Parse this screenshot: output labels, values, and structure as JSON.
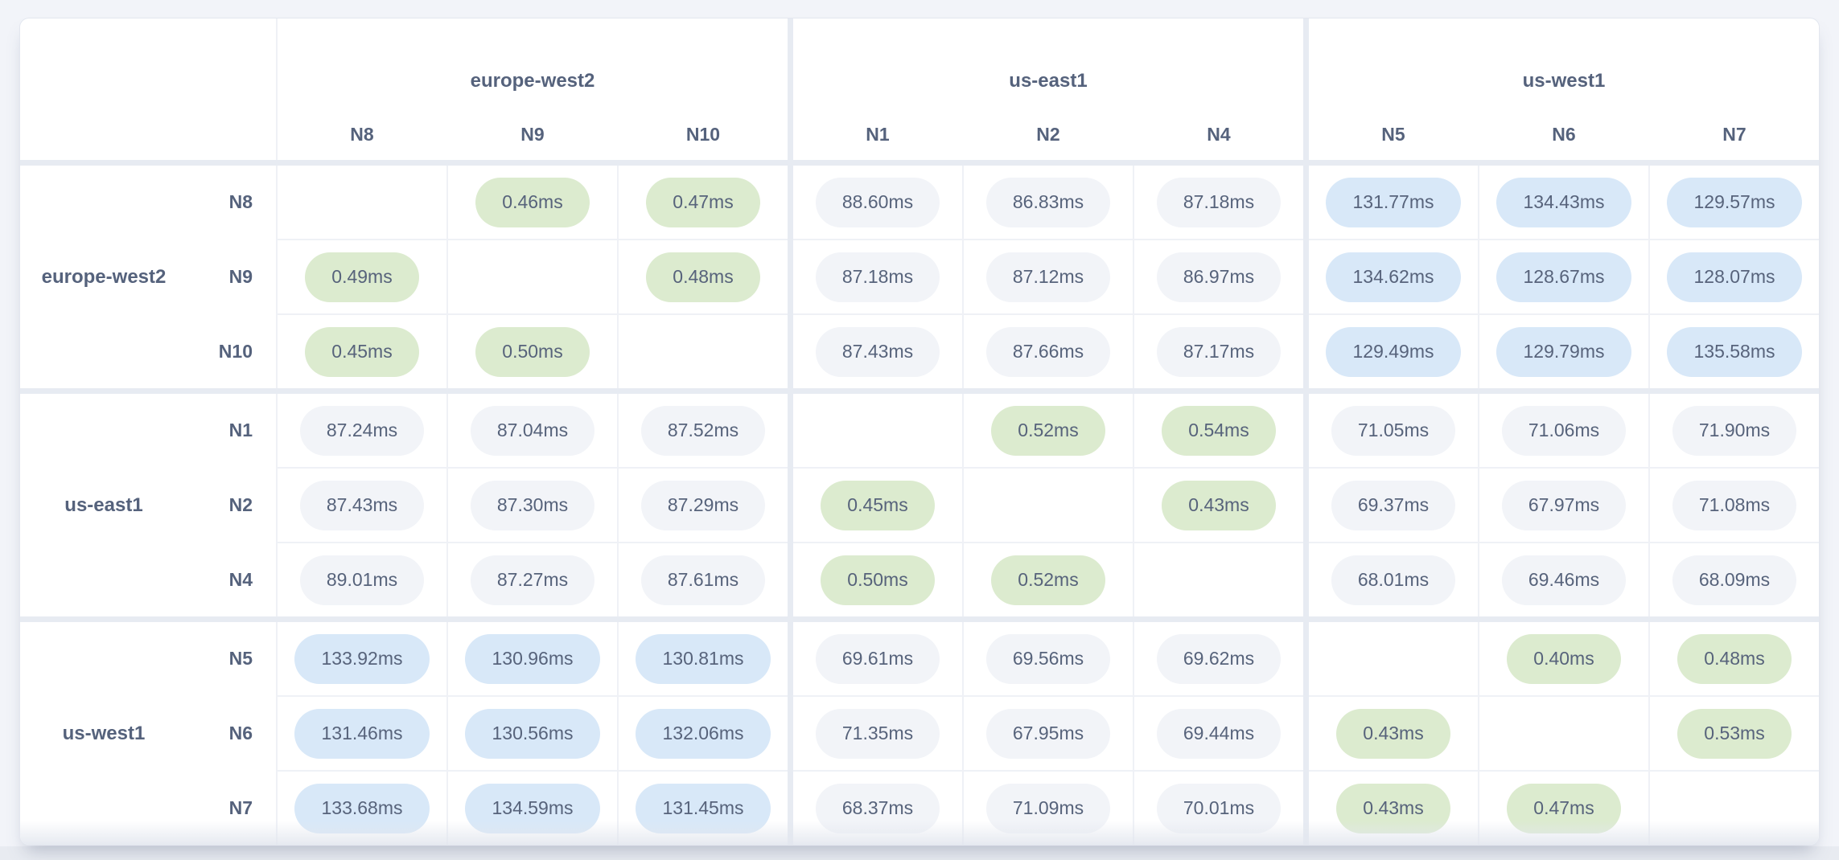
{
  "page": {
    "background": "#f2f4f9",
    "bottom_strip_color": "#e8ebf1"
  },
  "chart_data": {
    "type": "heatmap",
    "title": "",
    "unit": "ms",
    "value_suffix": "ms",
    "legend": "none",
    "cell_colors": {
      "intra_region_low": "#dcebcf",
      "mid_latency": "#f2f4f8",
      "high_latency": "#d8e8f8"
    },
    "thresholds_ms": {
      "low_below": 1,
      "high_at_or_above": 110
    },
    "column_groups": [
      {
        "region": "europe-west2",
        "nodes": [
          "N8",
          "N9",
          "N10"
        ]
      },
      {
        "region": "us-east1",
        "nodes": [
          "N1",
          "N2",
          "N4"
        ]
      },
      {
        "region": "us-west1",
        "nodes": [
          "N5",
          "N6",
          "N7"
        ]
      }
    ],
    "row_groups": [
      {
        "region": "europe-west2",
        "rows": [
          {
            "node": "N8",
            "values": [
              null,
              0.46,
              0.47,
              88.6,
              86.83,
              87.18,
              131.77,
              134.43,
              129.57
            ]
          },
          {
            "node": "N9",
            "values": [
              0.49,
              null,
              0.48,
              87.18,
              87.12,
              86.97,
              134.62,
              128.67,
              128.07
            ]
          },
          {
            "node": "N10",
            "values": [
              0.45,
              0.5,
              null,
              87.43,
              87.66,
              87.17,
              129.49,
              129.79,
              135.58
            ]
          }
        ]
      },
      {
        "region": "us-east1",
        "rows": [
          {
            "node": "N1",
            "values": [
              87.24,
              87.04,
              87.52,
              null,
              0.52,
              0.54,
              71.05,
              71.06,
              71.9
            ]
          },
          {
            "node": "N2",
            "values": [
              87.43,
              87.3,
              87.29,
              0.45,
              null,
              0.43,
              69.37,
              67.97,
              71.08
            ]
          },
          {
            "node": "N4",
            "values": [
              89.01,
              87.27,
              87.61,
              0.5,
              0.52,
              null,
              68.01,
              69.46,
              68.09
            ]
          }
        ]
      },
      {
        "region": "us-west1",
        "rows": [
          {
            "node": "N5",
            "values": [
              133.92,
              130.96,
              130.81,
              69.61,
              69.56,
              69.62,
              null,
              0.4,
              0.48
            ]
          },
          {
            "node": "N6",
            "values": [
              131.46,
              130.56,
              132.06,
              71.35,
              67.95,
              69.44,
              0.43,
              null,
              0.53
            ]
          },
          {
            "node": "N7",
            "values": [
              133.68,
              134.59,
              131.45,
              68.37,
              71.09,
              70.01,
              0.43,
              0.47,
              null
            ]
          }
        ]
      }
    ]
  }
}
